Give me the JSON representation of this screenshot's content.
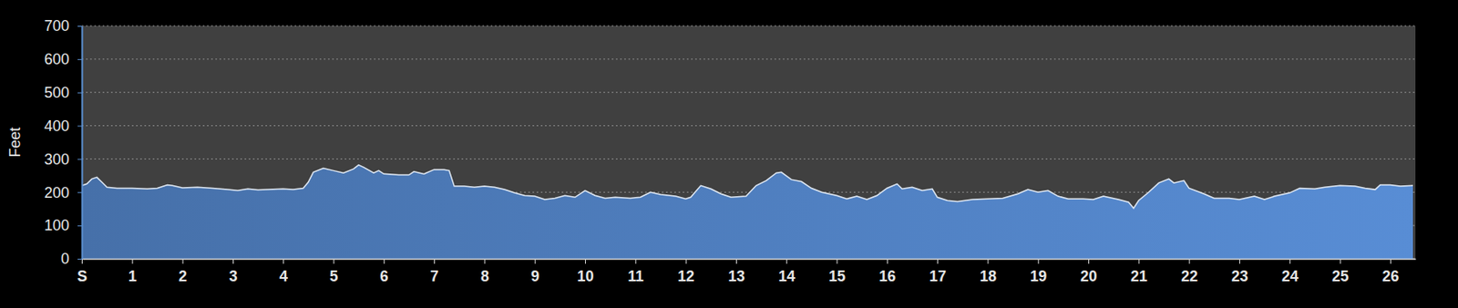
{
  "chart_data": {
    "type": "area",
    "y_label": "Feet",
    "color": "#4f7fbf",
    "grid": true,
    "xlim": [
      0,
      26.5
    ],
    "xticks": [
      {
        "value": 0,
        "label": "S"
      },
      1,
      2,
      3,
      4,
      5,
      6,
      7,
      8,
      9,
      10,
      11,
      12,
      13,
      14,
      15,
      16,
      17,
      18,
      19,
      20,
      21,
      22,
      23,
      24,
      25,
      26
    ],
    "ylim": [
      0,
      700
    ],
    "yticks": [
      0,
      100,
      200,
      300,
      400,
      500,
      600,
      700
    ],
    "x": [
      0,
      0.1,
      0.2,
      0.3,
      0.4,
      0.5,
      0.7,
      1.0,
      1.3,
      1.5,
      1.7,
      1.8,
      2.0,
      2.3,
      2.6,
      2.9,
      3.1,
      3.3,
      3.5,
      3.7,
      4.0,
      4.2,
      4.4,
      4.5,
      4.6,
      4.8,
      5.0,
      5.2,
      5.4,
      5.5,
      5.6,
      5.8,
      5.9,
      6.0,
      6.3,
      6.5,
      6.6,
      6.8,
      7.0,
      7.2,
      7.3,
      7.4,
      7.6,
      7.8,
      8.0,
      8.2,
      8.4,
      8.6,
      8.8,
      9.0,
      9.2,
      9.4,
      9.6,
      9.8,
      10.0,
      10.2,
      10.4,
      10.6,
      10.9,
      11.1,
      11.3,
      11.5,
      11.8,
      12.0,
      12.1,
      12.3,
      12.5,
      12.7,
      12.9,
      13.2,
      13.4,
      13.6,
      13.8,
      13.9,
      14.1,
      14.3,
      14.5,
      14.7,
      15.0,
      15.2,
      15.4,
      15.6,
      15.8,
      16.0,
      16.2,
      16.3,
      16.5,
      16.7,
      16.9,
      17.0,
      17.2,
      17.4,
      17.7,
      18.0,
      18.3,
      18.6,
      18.8,
      19.0,
      19.2,
      19.4,
      19.6,
      19.9,
      20.1,
      20.3,
      20.6,
      20.8,
      20.9,
      21.0,
      21.2,
      21.4,
      21.6,
      21.7,
      21.9,
      22.0,
      22.3,
      22.5,
      22.8,
      23.0,
      23.3,
      23.5,
      23.7,
      24.0,
      24.2,
      24.5,
      24.7,
      25.0,
      25.3,
      25.5,
      25.7,
      25.8,
      26.0,
      26.2,
      26.45
    ],
    "values": [
      220,
      225,
      240,
      245,
      230,
      215,
      212,
      212,
      210,
      212,
      222,
      220,
      213,
      215,
      212,
      208,
      205,
      210,
      207,
      208,
      210,
      208,
      212,
      230,
      260,
      272,
      265,
      258,
      270,
      282,
      275,
      258,
      265,
      255,
      252,
      252,
      262,
      255,
      268,
      268,
      265,
      218,
      218,
      215,
      218,
      215,
      208,
      198,
      190,
      188,
      178,
      182,
      190,
      185,
      205,
      190,
      182,
      185,
      182,
      185,
      200,
      193,
      188,
      180,
      185,
      220,
      210,
      195,
      185,
      188,
      220,
      235,
      258,
      260,
      238,
      232,
      212,
      200,
      190,
      180,
      188,
      178,
      190,
      212,
      225,
      210,
      215,
      205,
      210,
      185,
      175,
      172,
      178,
      180,
      182,
      195,
      208,
      200,
      205,
      188,
      180,
      180,
      178,
      188,
      178,
      170,
      152,
      175,
      200,
      228,
      240,
      228,
      235,
      212,
      195,
      182,
      182,
      178,
      188,
      178,
      188,
      198,
      212,
      210,
      215,
      220,
      218,
      212,
      208,
      222,
      222,
      218,
      220
    ]
  }
}
